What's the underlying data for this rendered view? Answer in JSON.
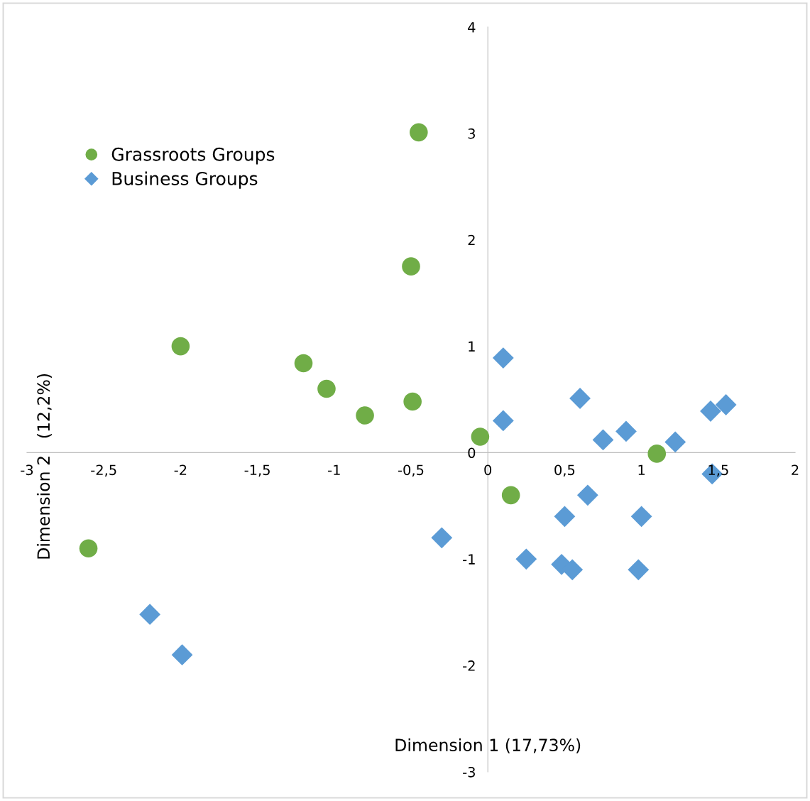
{
  "chart_data": {
    "type": "scatter",
    "xlabel": "Dimension 1 (17,73%)",
    "ylabel": "Dimension 2   (12,2%)",
    "xlim": [
      -3,
      2
    ],
    "ylim": [
      -3,
      4
    ],
    "xticks": [
      -3,
      {
        "value": -2.5,
        "label": "-2,5"
      },
      -2,
      {
        "value": -1.5,
        "label": "-1,5"
      },
      -1,
      {
        "value": -0.5,
        "label": "-0,5"
      },
      0,
      {
        "value": 0.5,
        "label": "0,5"
      },
      1,
      {
        "value": 1.5,
        "label": "1,5"
      },
      2
    ],
    "yticks": [
      -3,
      -2,
      -1,
      0,
      1,
      2,
      3,
      4
    ],
    "grid": false,
    "legend": "top left",
    "series": [
      {
        "name": "Grassroots Groups",
        "color": "#70ad47",
        "marker": "circle",
        "x": [
          -0.45,
          -0.5,
          -2.0,
          -1.2,
          -1.05,
          -0.8,
          -0.49,
          -0.05,
          1.1,
          0.15,
          -2.6
        ],
        "values": [
          3.01,
          1.75,
          1.0,
          0.84,
          0.6,
          0.35,
          0.48,
          0.15,
          -0.01,
          -0.4,
          -0.9
        ]
      },
      {
        "name": "Business Groups",
        "color": "#5b9bd5",
        "marker": "diamond",
        "x": [
          0.1,
          0.6,
          0.1,
          0.75,
          0.9,
          1.22,
          1.45,
          1.55,
          1.46,
          0.65,
          0.5,
          1.0,
          -0.3,
          0.25,
          0.48,
          0.55,
          0.98,
          -2.2,
          -1.99
        ],
        "values": [
          0.89,
          0.51,
          0.3,
          0.12,
          0.2,
          0.1,
          0.39,
          0.45,
          -0.2,
          -0.4,
          -0.6,
          -0.6,
          -0.8,
          -1.0,
          -1.05,
          -1.1,
          -1.1,
          -1.52,
          -1.9
        ]
      }
    ]
  }
}
